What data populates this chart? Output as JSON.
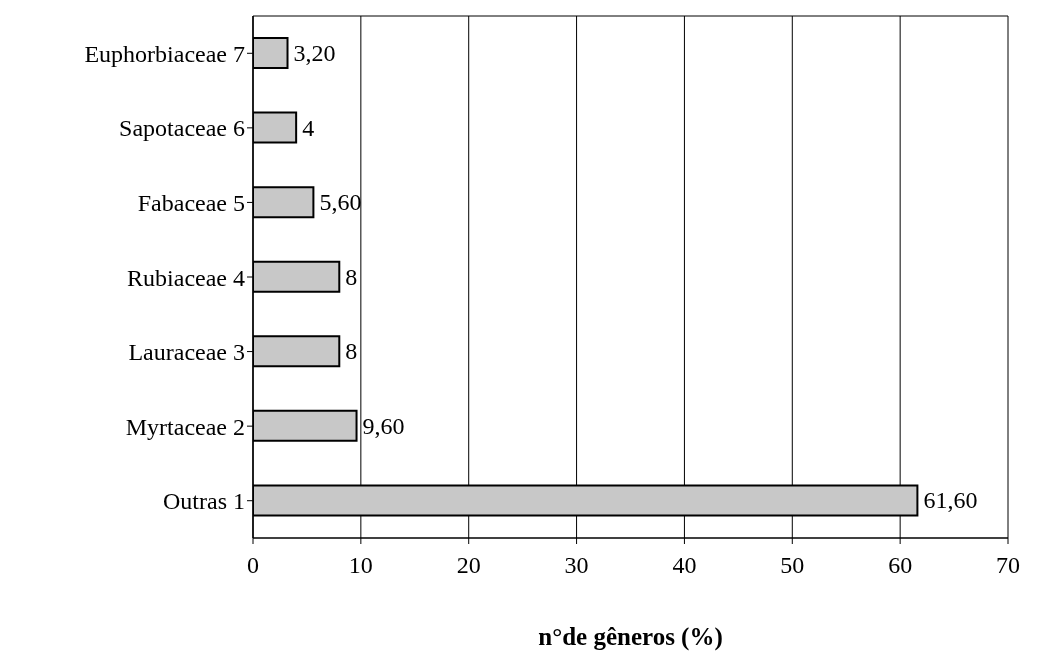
{
  "chart_data": {
    "type": "bar",
    "orientation": "horizontal",
    "xlabel": "n°de gêneros (%)",
    "categories": [
      "Euphorbiaceae 7",
      "Sapotaceae 6",
      "Fabaceae 5",
      "Rubiaceae 4",
      "Lauraceae 3",
      "Myrtaceae 2",
      "Outras 1"
    ],
    "values": [
      3.2,
      4,
      5.6,
      8,
      8,
      9.6,
      61.6
    ],
    "value_labels": [
      "3,20",
      "4",
      "5,60",
      "8",
      "8",
      "9,60",
      "61,60"
    ],
    "color": "#c8c8c8",
    "xlim": [
      0,
      70
    ],
    "xticks": [
      0,
      10,
      20,
      30,
      40,
      50,
      60,
      70
    ],
    "grid": "x"
  }
}
